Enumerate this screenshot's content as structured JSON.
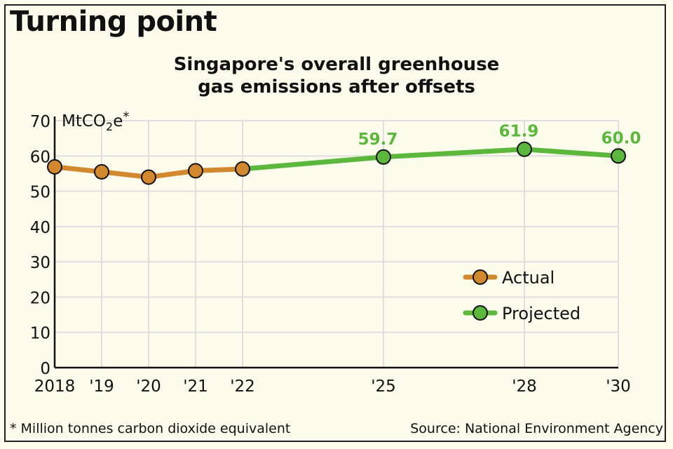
{
  "header": {
    "title": "Turning point",
    "subtitle_line1": "Singapore's overall greenhouse",
    "subtitle_line2": "gas emissions after offsets"
  },
  "footer": {
    "note": "* Million tonnes carbon dioxide equivalent",
    "source": "Source: National Environment Agency"
  },
  "colors": {
    "actual": "#d2882e",
    "projected": "#5cb83c",
    "label_green": "#5cb83c",
    "grid": "#dedede",
    "axis": "#111111",
    "background": "#fcfcec"
  },
  "chart_data": {
    "type": "line",
    "title": "Singapore's overall greenhouse gas emissions after offsets",
    "ylabel": "MtCO2e*",
    "xlabel": "",
    "ylim": [
      0,
      70
    ],
    "yticks": [
      0,
      10,
      20,
      30,
      40,
      50,
      60,
      70
    ],
    "xticks": [
      "2018",
      "'19",
      "'20",
      "'21",
      "'22",
      "'25",
      "'28",
      "'30"
    ],
    "grid": true,
    "legend_position": "lower right",
    "series": [
      {
        "name": "Actual",
        "color": "#d2882e",
        "x": [
          2018,
          2019,
          2020,
          2021,
          2022
        ],
        "values": [
          56.9,
          55.5,
          54.0,
          55.8,
          56.3
        ]
      },
      {
        "name": "Projected",
        "color": "#5cb83c",
        "x": [
          2022,
          2025,
          2028,
          2030
        ],
        "values": [
          56.3,
          59.7,
          61.9,
          60.0
        ],
        "labels": [
          "",
          "59.7",
          "61.9",
          "60.0"
        ]
      }
    ]
  }
}
